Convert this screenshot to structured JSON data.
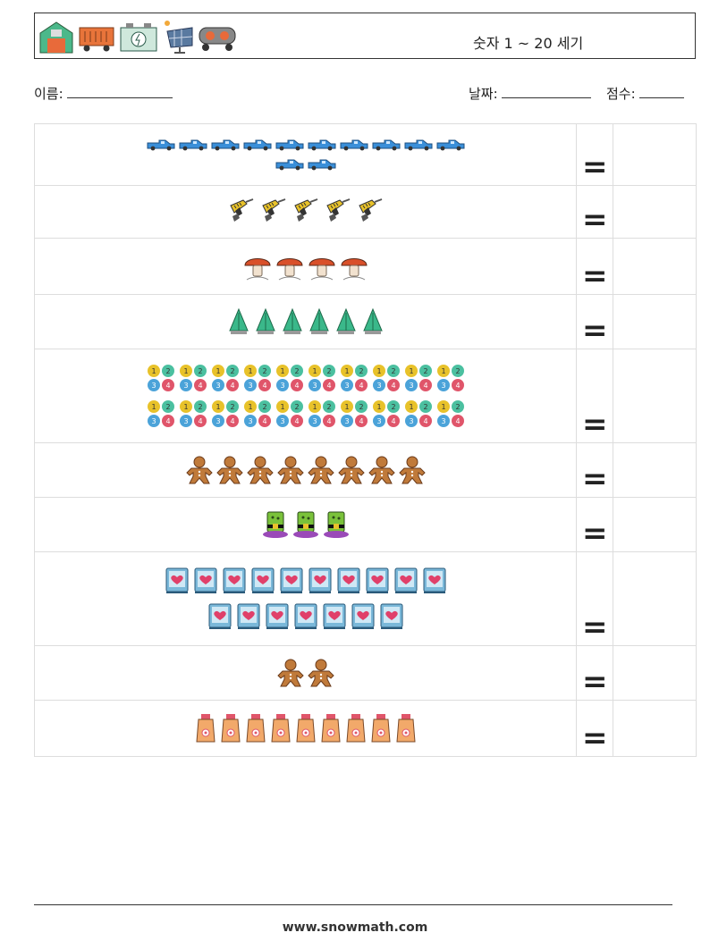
{
  "header": {
    "title": "숫자 1 ~ 20 세기",
    "icons": [
      "barn-icon",
      "train-wagon-icon",
      "battery-icon",
      "solar-panel-icon",
      "tank-car-icon"
    ]
  },
  "info": {
    "name_label": "이름:",
    "date_label": "날짜:",
    "score_label": "점수:"
  },
  "rows": [
    {
      "item": "pickup-truck-icon",
      "count": 12,
      "lines": [
        10,
        2
      ]
    },
    {
      "item": "drill-icon",
      "count": 5,
      "lines": [
        5
      ]
    },
    {
      "item": "mushroom-icon",
      "count": 4,
      "lines": [
        4
      ]
    },
    {
      "item": "tree-icon",
      "count": 6,
      "lines": [
        6
      ]
    },
    {
      "item": "counting-blocks-icon",
      "count": 20,
      "lines": [
        10,
        10
      ]
    },
    {
      "item": "gingerbread-icon",
      "count": 8,
      "lines": [
        8
      ]
    },
    {
      "item": "witch-hat-icon",
      "count": 3,
      "lines": [
        3
      ]
    },
    {
      "item": "heart-book-icon",
      "count": 17,
      "lines": [
        10,
        7
      ]
    },
    {
      "item": "gingerbread-icon",
      "count": 2,
      "lines": [
        2
      ]
    },
    {
      "item": "lotion-bottle-icon",
      "count": 9,
      "lines": [
        9
      ]
    }
  ],
  "equals_sign": "=",
  "footer": "www.snowmath.com"
}
